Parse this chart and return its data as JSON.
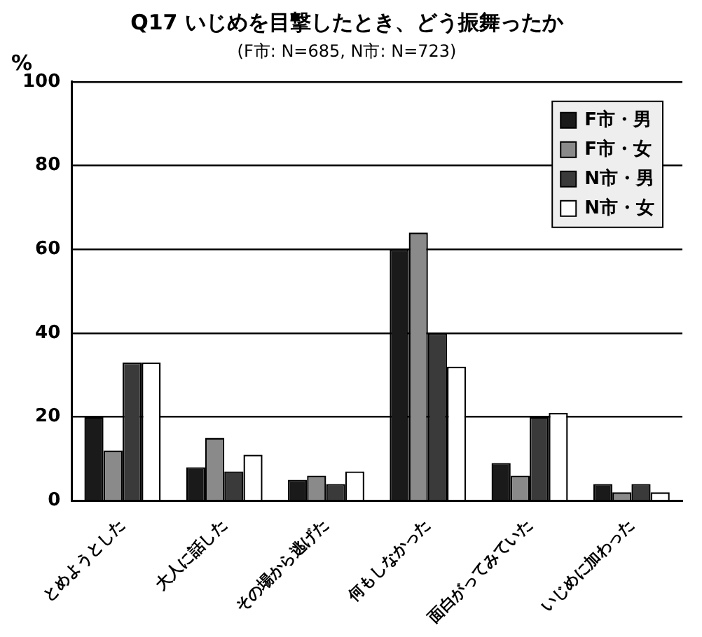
{
  "chart_data": {
    "type": "bar",
    "title": "Q17 いじめを目撃したとき、どう振舞ったか",
    "subtitle": "(F市: N=685, N市: N=723)",
    "ylabel": "%",
    "categories": [
      "とめようとした",
      "大人に話した",
      "その場から逃げた",
      "何もしなかった",
      "面白がってみていた",
      "いじめに加わった"
    ],
    "series": [
      {
        "name": "F市・男",
        "color": "#1a1a1a",
        "values": [
          20,
          8,
          5,
          60,
          9,
          4
        ]
      },
      {
        "name": "F市・女",
        "color": "#8a8a8a",
        "values": [
          12,
          15,
          6,
          64,
          6,
          2
        ]
      },
      {
        "name": "N市・男",
        "color": "#3a3a3a",
        "values": [
          33,
          7,
          4,
          40,
          20,
          4
        ]
      },
      {
        "name": "N市・女",
        "color": "#ffffff",
        "values": [
          33,
          11,
          7,
          32,
          21,
          2
        ]
      }
    ],
    "ylim": [
      0,
      100
    ],
    "yticks": [
      0,
      20,
      40,
      60,
      80,
      100
    ],
    "grid": "y",
    "legend": "top right"
  }
}
